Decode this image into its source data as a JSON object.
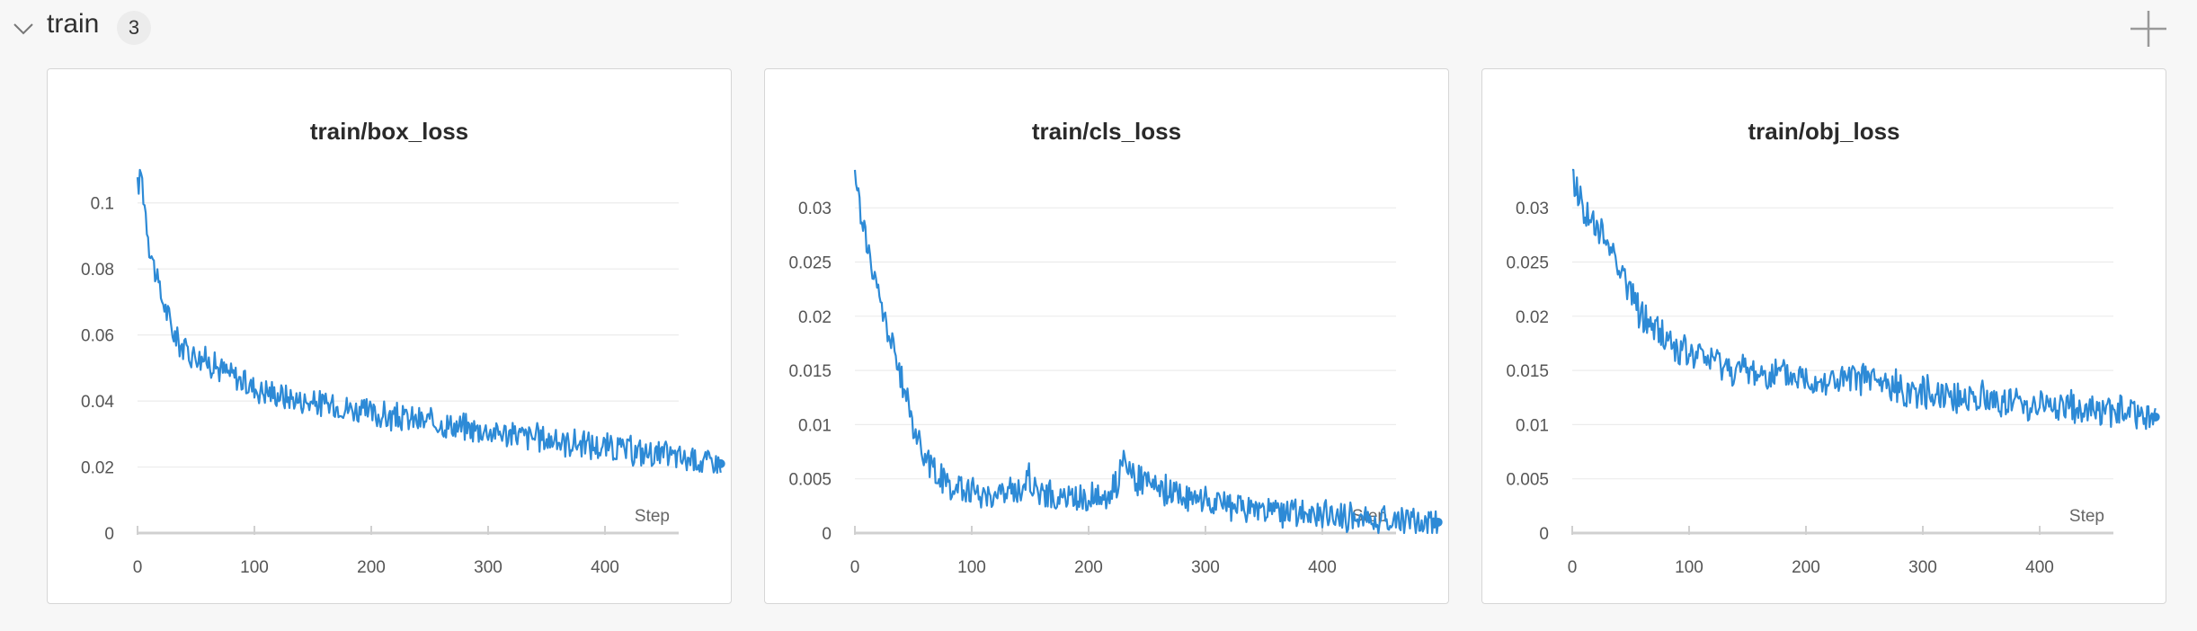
{
  "section": {
    "title": "train",
    "count": "3",
    "collapse_icon": "chevron-down-icon",
    "add_icon": "plus-icon"
  },
  "colors": {
    "line": "#2d8ad6",
    "grid": "#ececec",
    "axis": "#d0d0d0"
  },
  "chart_data": [
    {
      "type": "line",
      "title": "train/box_loss",
      "xlabel": "Step",
      "ylabel": "",
      "xlim": [
        0,
        500
      ],
      "ylim": [
        0,
        0.11
      ],
      "xticks": [
        0,
        100,
        200,
        300,
        400
      ],
      "yticks": [
        0,
        0.02,
        0.04,
        0.06,
        0.08,
        0.1
      ],
      "ytick_labels": [
        "0",
        "0.02",
        "0.04",
        "0.06",
        "0.08",
        "0.1"
      ],
      "grid": true,
      "series": [
        {
          "x": [
            0,
            3,
            6,
            10,
            15,
            20,
            25,
            30,
            40,
            50,
            60,
            70,
            80,
            90,
            100,
            120,
            140,
            160,
            180,
            200,
            220,
            240,
            260,
            280,
            300,
            320,
            340,
            360,
            380,
            400,
            420,
            440,
            460,
            480,
            499
          ],
          "y": [
            0.104,
            0.11,
            0.1,
            0.088,
            0.079,
            0.072,
            0.067,
            0.061,
            0.056,
            0.054,
            0.052,
            0.05,
            0.048,
            0.046,
            0.044,
            0.042,
            0.04,
            0.039,
            0.038,
            0.036,
            0.035,
            0.034,
            0.033,
            0.032,
            0.031,
            0.03,
            0.029,
            0.028,
            0.027,
            0.026,
            0.025,
            0.024,
            0.023,
            0.022,
            0.021
          ],
          "noise": 0.005
        }
      ]
    },
    {
      "type": "line",
      "title": "train/cls_loss",
      "xlabel": "Step",
      "ylabel": "",
      "xlim": [
        0,
        500
      ],
      "ylim": [
        0,
        0.0335
      ],
      "xticks": [
        0,
        100,
        200,
        300,
        400
      ],
      "yticks": [
        0,
        0.005,
        0.01,
        0.015,
        0.02,
        0.025,
        0.03
      ],
      "ytick_labels": [
        "0",
        "0.005",
        "0.01",
        "0.015",
        "0.02",
        "0.025",
        "0.03"
      ],
      "grid": true,
      "series": [
        {
          "x": [
            0,
            3,
            6,
            10,
            15,
            20,
            25,
            30,
            40,
            50,
            60,
            70,
            80,
            90,
            100,
            110,
            120,
            140,
            150,
            160,
            180,
            200,
            215,
            225,
            230,
            235,
            240,
            250,
            260,
            280,
            300,
            320,
            340,
            360,
            380,
            400,
            420,
            440,
            460,
            480,
            499
          ],
          "y": [
            0.033,
            0.031,
            0.029,
            0.027,
            0.024,
            0.022,
            0.02,
            0.018,
            0.014,
            0.01,
            0.007,
            0.0055,
            0.0045,
            0.004,
            0.0038,
            0.0035,
            0.0035,
            0.004,
            0.005,
            0.0035,
            0.0032,
            0.0033,
            0.0035,
            0.0045,
            0.008,
            0.006,
            0.005,
            0.0045,
            0.004,
            0.0035,
            0.003,
            0.0025,
            0.0022,
            0.002,
            0.0018,
            0.0016,
            0.0015,
            0.0013,
            0.0012,
            0.0011,
            0.001
          ],
          "noise": 0.0016
        }
      ]
    },
    {
      "type": "line",
      "title": "train/obj_loss",
      "xlabel": "Step",
      "ylabel": "",
      "xlim": [
        0,
        500
      ],
      "ylim": [
        0,
        0.0335
      ],
      "xticks": [
        0,
        100,
        200,
        300,
        400
      ],
      "yticks": [
        0,
        0.005,
        0.01,
        0.015,
        0.02,
        0.025,
        0.03
      ],
      "ytick_labels": [
        "0",
        "0.005",
        "0.01",
        "0.015",
        "0.02",
        "0.025",
        "0.03"
      ],
      "grid": true,
      "series": [
        {
          "x": [
            0,
            3,
            6,
            10,
            15,
            20,
            30,
            40,
            50,
            60,
            70,
            80,
            90,
            100,
            120,
            140,
            160,
            180,
            200,
            220,
            240,
            250,
            260,
            280,
            300,
            320,
            340,
            360,
            380,
            400,
            420,
            440,
            460,
            480,
            499
          ],
          "y": [
            0.034,
            0.032,
            0.031,
            0.03,
            0.029,
            0.028,
            0.027,
            0.025,
            0.022,
            0.02,
            0.019,
            0.018,
            0.017,
            0.0165,
            0.016,
            0.015,
            0.0148,
            0.0145,
            0.0142,
            0.014,
            0.014,
            0.0145,
            0.0138,
            0.0133,
            0.013,
            0.0128,
            0.0126,
            0.0123,
            0.012,
            0.0118,
            0.0116,
            0.0114,
            0.0112,
            0.011,
            0.0107
          ],
          "noise": 0.0018
        }
      ]
    }
  ]
}
